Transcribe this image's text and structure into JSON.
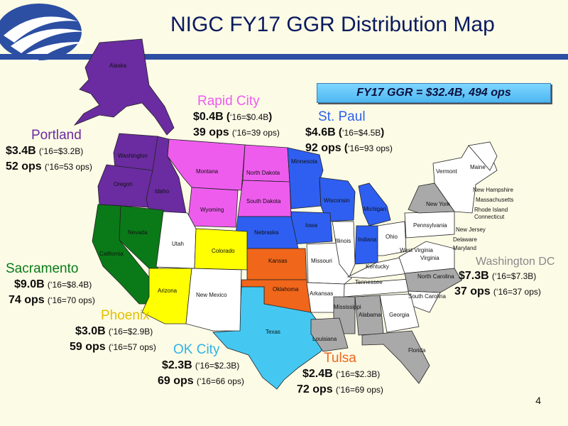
{
  "title": "NIGC FY17 GGR Distribution Map",
  "total_box": "FY17 GGR = $32.4B, 494 ops",
  "slide_number": "4",
  "colors": {
    "portland": "#6a2ca0",
    "rapid_city": "#ee5cee",
    "st_paul": "#2e5ff0",
    "sacramento": "#0a7a18",
    "phoenix": "#ffff00",
    "ok_city": "#44c8f2",
    "tulsa": "#f0661a",
    "washington_dc": "#a9a9a9",
    "unassigned": "#ffffff"
  },
  "regions": {
    "portland": {
      "name": "Portland",
      "ggr": "$3.4B",
      "ggr_prev": "(‘16=$3.2B)",
      "ops": "52 ops",
      "ops_prev": "(‘16=53 ops)"
    },
    "rapid_city": {
      "name": "Rapid City",
      "ggr": "$0.4B",
      "ggr_prev_open": "(",
      "ggr_prev": "‘16=$0.4B",
      "ggr_prev_close": ")",
      "ops": "39 ops",
      "ops_prev": "(‘16=39 ops)"
    },
    "st_paul": {
      "name": "St. Paul",
      "ggr": "$4.6B",
      "ggr_prev_open": "(",
      "ggr_prev": "‘16=$4.5B",
      "ggr_prev_close": ")",
      "ops": "92 ops",
      "ops_prev_open": "(",
      "ops_prev": "‘16=93 ops)"
    },
    "sacramento": {
      "name": "Sacramento",
      "ggr": "$9.0B",
      "ggr_prev": "(‘16=$8.4B)",
      "ops": "74 ops",
      "ops_prev": "(‘16=70 ops)"
    },
    "phoenix": {
      "name": "Phoenix",
      "ggr": "$3.0B",
      "ggr_prev": "(‘16=$2.9B)",
      "ops": "59 ops",
      "ops_prev": "(‘16=57 ops)"
    },
    "ok_city": {
      "name": "OK City",
      "ggr": "$2.3B",
      "ggr_prev": "(‘16=$2.3B)",
      "ops": "69 ops",
      "ops_prev": "(‘16=66 ops)"
    },
    "tulsa": {
      "name": "Tulsa",
      "ggr": "$2.4B",
      "ggr_prev": "(‘16=$2.3B)",
      "ops": "72 ops",
      "ops_prev": "(‘16=69 ops)"
    },
    "washington_dc": {
      "name": "Washington DC",
      "ggr": "$7.3B",
      "ggr_prev": "(‘16=$7.3B)",
      "ops": "37 ops",
      "ops_prev": "(‘16=37 ops)"
    }
  },
  "state_labels": {
    "alaska": "Alaska",
    "washington": "Washington",
    "oregon": "Oregon",
    "idaho": "Idaho",
    "montana": "Montana",
    "wyoming": "Wyoming",
    "north_dakota": "North Dakota",
    "south_dakota": "South Dakota",
    "minnesota": "Minnesota",
    "wisconsin": "Wisconsin",
    "michigan": "Michigan",
    "iowa": "Iowa",
    "nebraska": "Nebraska",
    "kansas": "Kansas",
    "oklahoma": "Oklahoma",
    "texas": "Texas",
    "california": "California",
    "nevada": "Nevada",
    "utah": "Utah",
    "colorado": "Colorado",
    "arizona": "Arizona",
    "new_mexico": "New Mexico",
    "missouri": "Missouri",
    "illinois": "Illinois",
    "indiana": "Indiana",
    "ohio": "Ohio",
    "kentucky": "Kentucky",
    "tennessee": "Tennessee",
    "arkansas": "Arkansas",
    "louisiana": "Louisiana",
    "mississippi": "Mississippi",
    "alabama": "Alabama",
    "georgia": "Georgia",
    "florida": "Florida",
    "south_carolina": "South Carolina",
    "north_carolina": "North Carolina",
    "virginia": "Virginia",
    "west_virginia": "West Virginia",
    "pennsylvania": "Pennsylvania",
    "new_york": "New York",
    "vermont": "Vermont",
    "maine": "Maine",
    "new_hampshire": "New Hampshire",
    "massachusetts": "Massachusetts",
    "rhode_island": "Rhode Island",
    "connecticut": "Connecticut",
    "new_jersey": "New Jersey",
    "delaware": "Delaware",
    "maryland": "Maryland"
  }
}
